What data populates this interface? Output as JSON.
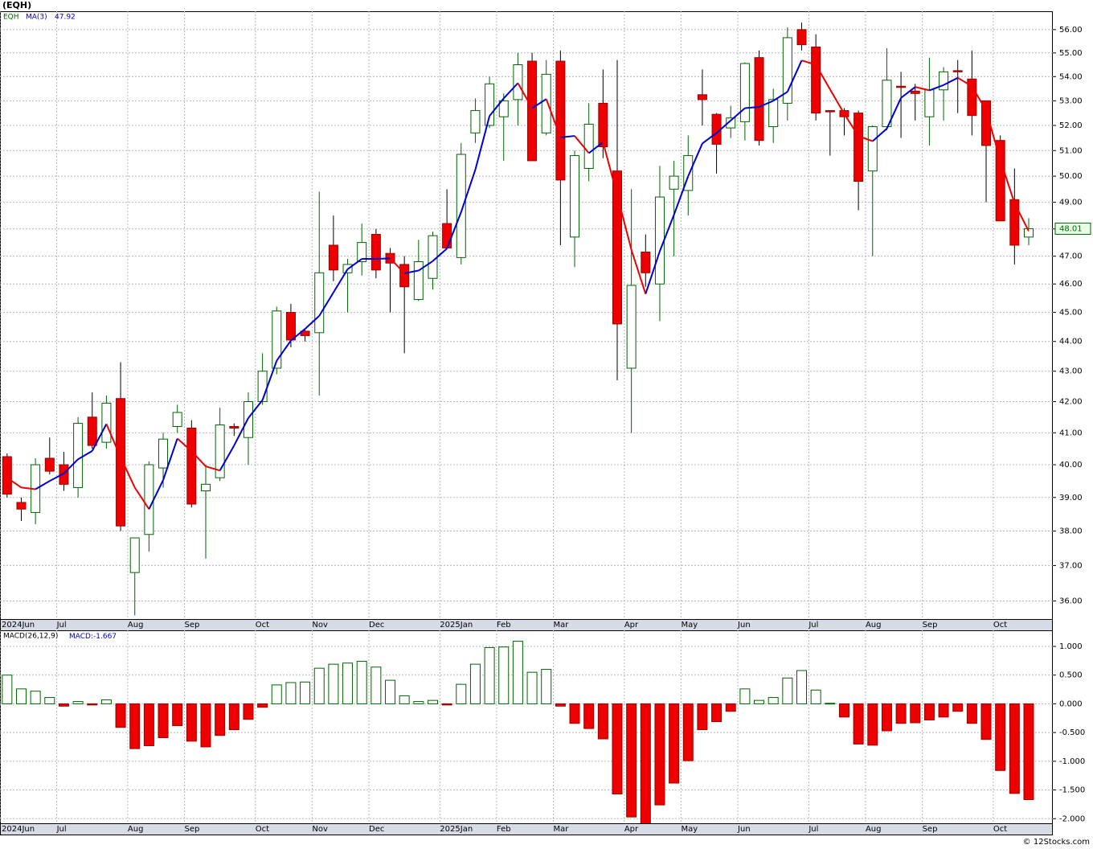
{
  "chart_data": [
    {
      "type": "candlestick",
      "title": "(EQH)",
      "log_scale": true,
      "grid": true,
      "xlim": [
        -0.5,
        73.7
      ],
      "ylim": [
        35.5,
        56.8
      ],
      "xticks": [
        {
          "value": 0,
          "label": "2024Jun"
        },
        {
          "value": 4,
          "label": "Jul"
        },
        {
          "value": 9,
          "label": "Aug"
        },
        {
          "value": 13,
          "label": "Sep"
        },
        {
          "value": 18,
          "label": "Oct"
        },
        {
          "value": 22,
          "label": "Nov"
        },
        {
          "value": 26,
          "label": "Dec"
        },
        {
          "value": 31,
          "label": "2025Jan"
        },
        {
          "value": 35,
          "label": "Feb"
        },
        {
          "value": 39,
          "label": "Mar"
        },
        {
          "value": 44,
          "label": "Apr"
        },
        {
          "value": 48,
          "label": "May"
        },
        {
          "value": 52,
          "label": "Jun"
        },
        {
          "value": 57,
          "label": "Jul"
        },
        {
          "value": 61,
          "label": "Aug"
        },
        {
          "value": 65,
          "label": "Sep"
        },
        {
          "value": 70,
          "label": "Oct"
        }
      ],
      "yticks": [
        {
          "value": 36,
          "label": "36.00"
        },
        {
          "value": 37,
          "label": "37.00"
        },
        {
          "value": 38,
          "label": "38.00"
        },
        {
          "value": 39,
          "label": "39.00"
        },
        {
          "value": 40,
          "label": "40.00"
        },
        {
          "value": 41,
          "label": "41.00"
        },
        {
          "value": 42,
          "label": "42.00"
        },
        {
          "value": 43,
          "label": "43.00"
        },
        {
          "value": 44,
          "label": "44.00"
        },
        {
          "value": 45,
          "label": "45.00"
        },
        {
          "value": 46,
          "label": "46.00"
        },
        {
          "value": 47,
          "label": "47.00"
        },
        {
          "value": 48,
          "label": "48.00"
        },
        {
          "value": 49,
          "label": "49.00"
        },
        {
          "value": 50,
          "label": "50.00"
        },
        {
          "value": 51,
          "label": "51.00"
        },
        {
          "value": 52,
          "label": "52.00"
        },
        {
          "value": 53,
          "label": "53.00"
        },
        {
          "value": 54,
          "label": "54.00"
        },
        {
          "value": 55,
          "label": "55.00"
        },
        {
          "value": 56,
          "label": "56.00"
        }
      ],
      "series": [
        {
          "name": "EQH",
          "up_color": "#006400",
          "down_color": "#ee0000",
          "open": [
            40.25,
            38.85,
            38.55,
            40.2,
            40.0,
            39.3,
            41.5,
            40.7,
            42.1,
            36.8,
            37.9,
            39.9,
            41.2,
            41.15,
            39.2,
            39.6,
            41.2,
            40.85,
            42.0,
            43.1,
            45.0,
            44.35,
            44.3,
            47.4,
            46.4,
            46.8,
            47.8,
            47.1,
            46.7,
            45.45,
            46.2,
            48.2,
            46.95,
            51.7,
            52.0,
            52.35,
            53.05,
            54.65,
            51.7,
            54.65,
            47.7,
            50.3,
            52.9,
            50.2,
            43.1,
            47.15,
            46.0,
            49.5,
            49.45,
            53.25,
            52.45,
            51.9,
            52.15,
            54.8,
            51.95,
            52.9,
            56.0,
            55.25,
            52.6,
            52.6,
            52.5,
            50.2,
            51.95,
            53.6,
            53.4,
            52.35,
            53.45,
            54.25,
            53.9,
            53.0,
            51.4,
            49.1,
            47.7
          ],
          "high": [
            40.35,
            39.0,
            40.2,
            40.85,
            40.4,
            41.5,
            42.3,
            42.2,
            43.3,
            37.8,
            40.1,
            41.0,
            41.9,
            41.4,
            40.0,
            41.8,
            41.3,
            42.3,
            43.6,
            45.2,
            45.3,
            44.4,
            49.4,
            48.5,
            46.9,
            48.2,
            48.0,
            47.3,
            47.0,
            47.6,
            47.9,
            49.5,
            51.3,
            53.1,
            54.0,
            53.3,
            55.0,
            55.0,
            54.7,
            55.1,
            51.0,
            52.9,
            54.3,
            54.7,
            49.5,
            47.8,
            50.4,
            50.6,
            51.6,
            54.3,
            52.5,
            52.8,
            54.6,
            55.1,
            53.5,
            56.1,
            56.3,
            55.8,
            52.6,
            52.7,
            52.6,
            52.0,
            55.2,
            54.2,
            53.7,
            54.8,
            54.4,
            54.7,
            55.1,
            53.0,
            51.6,
            50.3,
            48.4
          ],
          "low": [
            39.0,
            38.3,
            38.2,
            39.7,
            39.2,
            39.0,
            40.5,
            40.5,
            38.0,
            35.6,
            37.4,
            39.3,
            41.0,
            38.7,
            37.2,
            39.5,
            40.9,
            40.0,
            41.9,
            42.9,
            43.8,
            44.0,
            42.2,
            46.1,
            45.0,
            46.3,
            46.2,
            45.0,
            43.6,
            45.4,
            45.8,
            47.3,
            46.7,
            51.3,
            51.9,
            50.6,
            52.0,
            50.6,
            51.6,
            47.4,
            46.6,
            49.8,
            50.7,
            42.7,
            41.0,
            45.9,
            44.7,
            47.0,
            48.5,
            52.0,
            50.1,
            51.5,
            51.4,
            51.2,
            51.3,
            52.2,
            55.1,
            52.2,
            50.8,
            51.6,
            48.7,
            47.0,
            51.8,
            51.5,
            52.2,
            51.2,
            52.2,
            52.5,
            51.6,
            49.0,
            48.3,
            46.7,
            47.4
          ],
          "close": [
            39.1,
            38.65,
            40.0,
            39.8,
            39.4,
            41.3,
            40.6,
            41.95,
            38.15,
            37.8,
            40.0,
            40.8,
            41.65,
            38.8,
            39.4,
            41.25,
            41.15,
            42.0,
            43.0,
            45.05,
            44.05,
            44.2,
            46.4,
            46.5,
            46.7,
            47.5,
            46.5,
            46.75,
            45.9,
            46.8,
            47.75,
            47.3,
            50.85,
            52.6,
            53.7,
            53.0,
            54.5,
            50.6,
            54.1,
            49.85,
            50.8,
            52.05,
            51.15,
            44.6,
            45.95,
            46.4,
            49.2,
            50.0,
            50.8,
            53.05,
            51.25,
            52.3,
            54.55,
            51.4,
            53.05,
            55.65,
            55.35,
            52.5,
            52.55,
            52.35,
            49.8,
            51.95,
            53.85,
            53.55,
            53.3,
            53.45,
            54.2,
            54.2,
            52.4,
            51.2,
            48.3,
            47.4,
            48.01
          ]
        }
      ],
      "ma": {
        "name": "MA(3)",
        "color": "#0000cc",
        "down_color": "#ee0000",
        "values": [
          39.6,
          39.3,
          39.25,
          39.5,
          39.73,
          40.17,
          40.43,
          41.28,
          40.23,
          39.3,
          38.65,
          39.53,
          40.82,
          40.42,
          39.95,
          39.82,
          40.6,
          41.47,
          42.05,
          43.35,
          44.03,
          44.43,
          44.88,
          45.7,
          46.53,
          46.9,
          46.9,
          46.92,
          46.38,
          46.48,
          46.82,
          47.28,
          48.63,
          50.25,
          52.38,
          53.1,
          53.73,
          52.7,
          53.07,
          51.52,
          51.58,
          50.9,
          51.33,
          49.27,
          47.23,
          45.65,
          47.18,
          48.53,
          50.0,
          51.28,
          51.7,
          52.2,
          52.7,
          52.75,
          53.0,
          53.37,
          54.68,
          54.5,
          53.47,
          52.47,
          51.57,
          51.37,
          51.87,
          53.12,
          53.57,
          53.43,
          53.65,
          53.95,
          53.6,
          52.6,
          50.63,
          48.97,
          47.92
        ]
      }
    },
    {
      "type": "bar",
      "title": "MACD(26,12,9)",
      "legend_label": "MACD:",
      "grid": true,
      "up_color": "#006400",
      "down_color": "#ee0000",
      "xlim": [
        -0.5,
        73.7
      ],
      "ylim": [
        -2.08,
        1.28
      ],
      "yticks": [
        {
          "value": 1,
          "label": "1.000"
        },
        {
          "value": 0.5,
          "label": "0.500"
        },
        {
          "value": 0,
          "label": "0.000"
        },
        {
          "value": -0.5,
          "label": "-0.500"
        },
        {
          "value": -1,
          "label": "-1.000"
        },
        {
          "value": -1.5,
          "label": "-1.500"
        },
        {
          "value": -2,
          "label": "-2.000"
        }
      ],
      "values": [
        0.5,
        0.26,
        0.22,
        0.11,
        -0.04,
        0.04,
        -0.02,
        0.07,
        -0.41,
        -0.78,
        -0.73,
        -0.59,
        -0.38,
        -0.65,
        -0.75,
        -0.55,
        -0.45,
        -0.27,
        -0.06,
        0.33,
        0.37,
        0.38,
        0.62,
        0.69,
        0.71,
        0.74,
        0.64,
        0.41,
        0.14,
        0.04,
        0.06,
        -0.02,
        0.34,
        0.69,
        0.98,
        0.99,
        1.09,
        0.55,
        0.6,
        -0.04,
        -0.34,
        -0.43,
        -0.61,
        -1.57,
        -1.97,
        -2.11,
        -1.76,
        -1.38,
        -0.99,
        -0.45,
        -0.31,
        -0.13,
        0.26,
        0.06,
        0.11,
        0.45,
        0.58,
        0.24,
        0.01,
        -0.23,
        -0.7,
        -0.72,
        -0.47,
        -0.34,
        -0.33,
        -0.28,
        -0.23,
        -0.13,
        -0.34,
        -0.62,
        -1.16,
        -1.56,
        -1.667
      ]
    }
  ],
  "source": "© 12Stocks.com"
}
